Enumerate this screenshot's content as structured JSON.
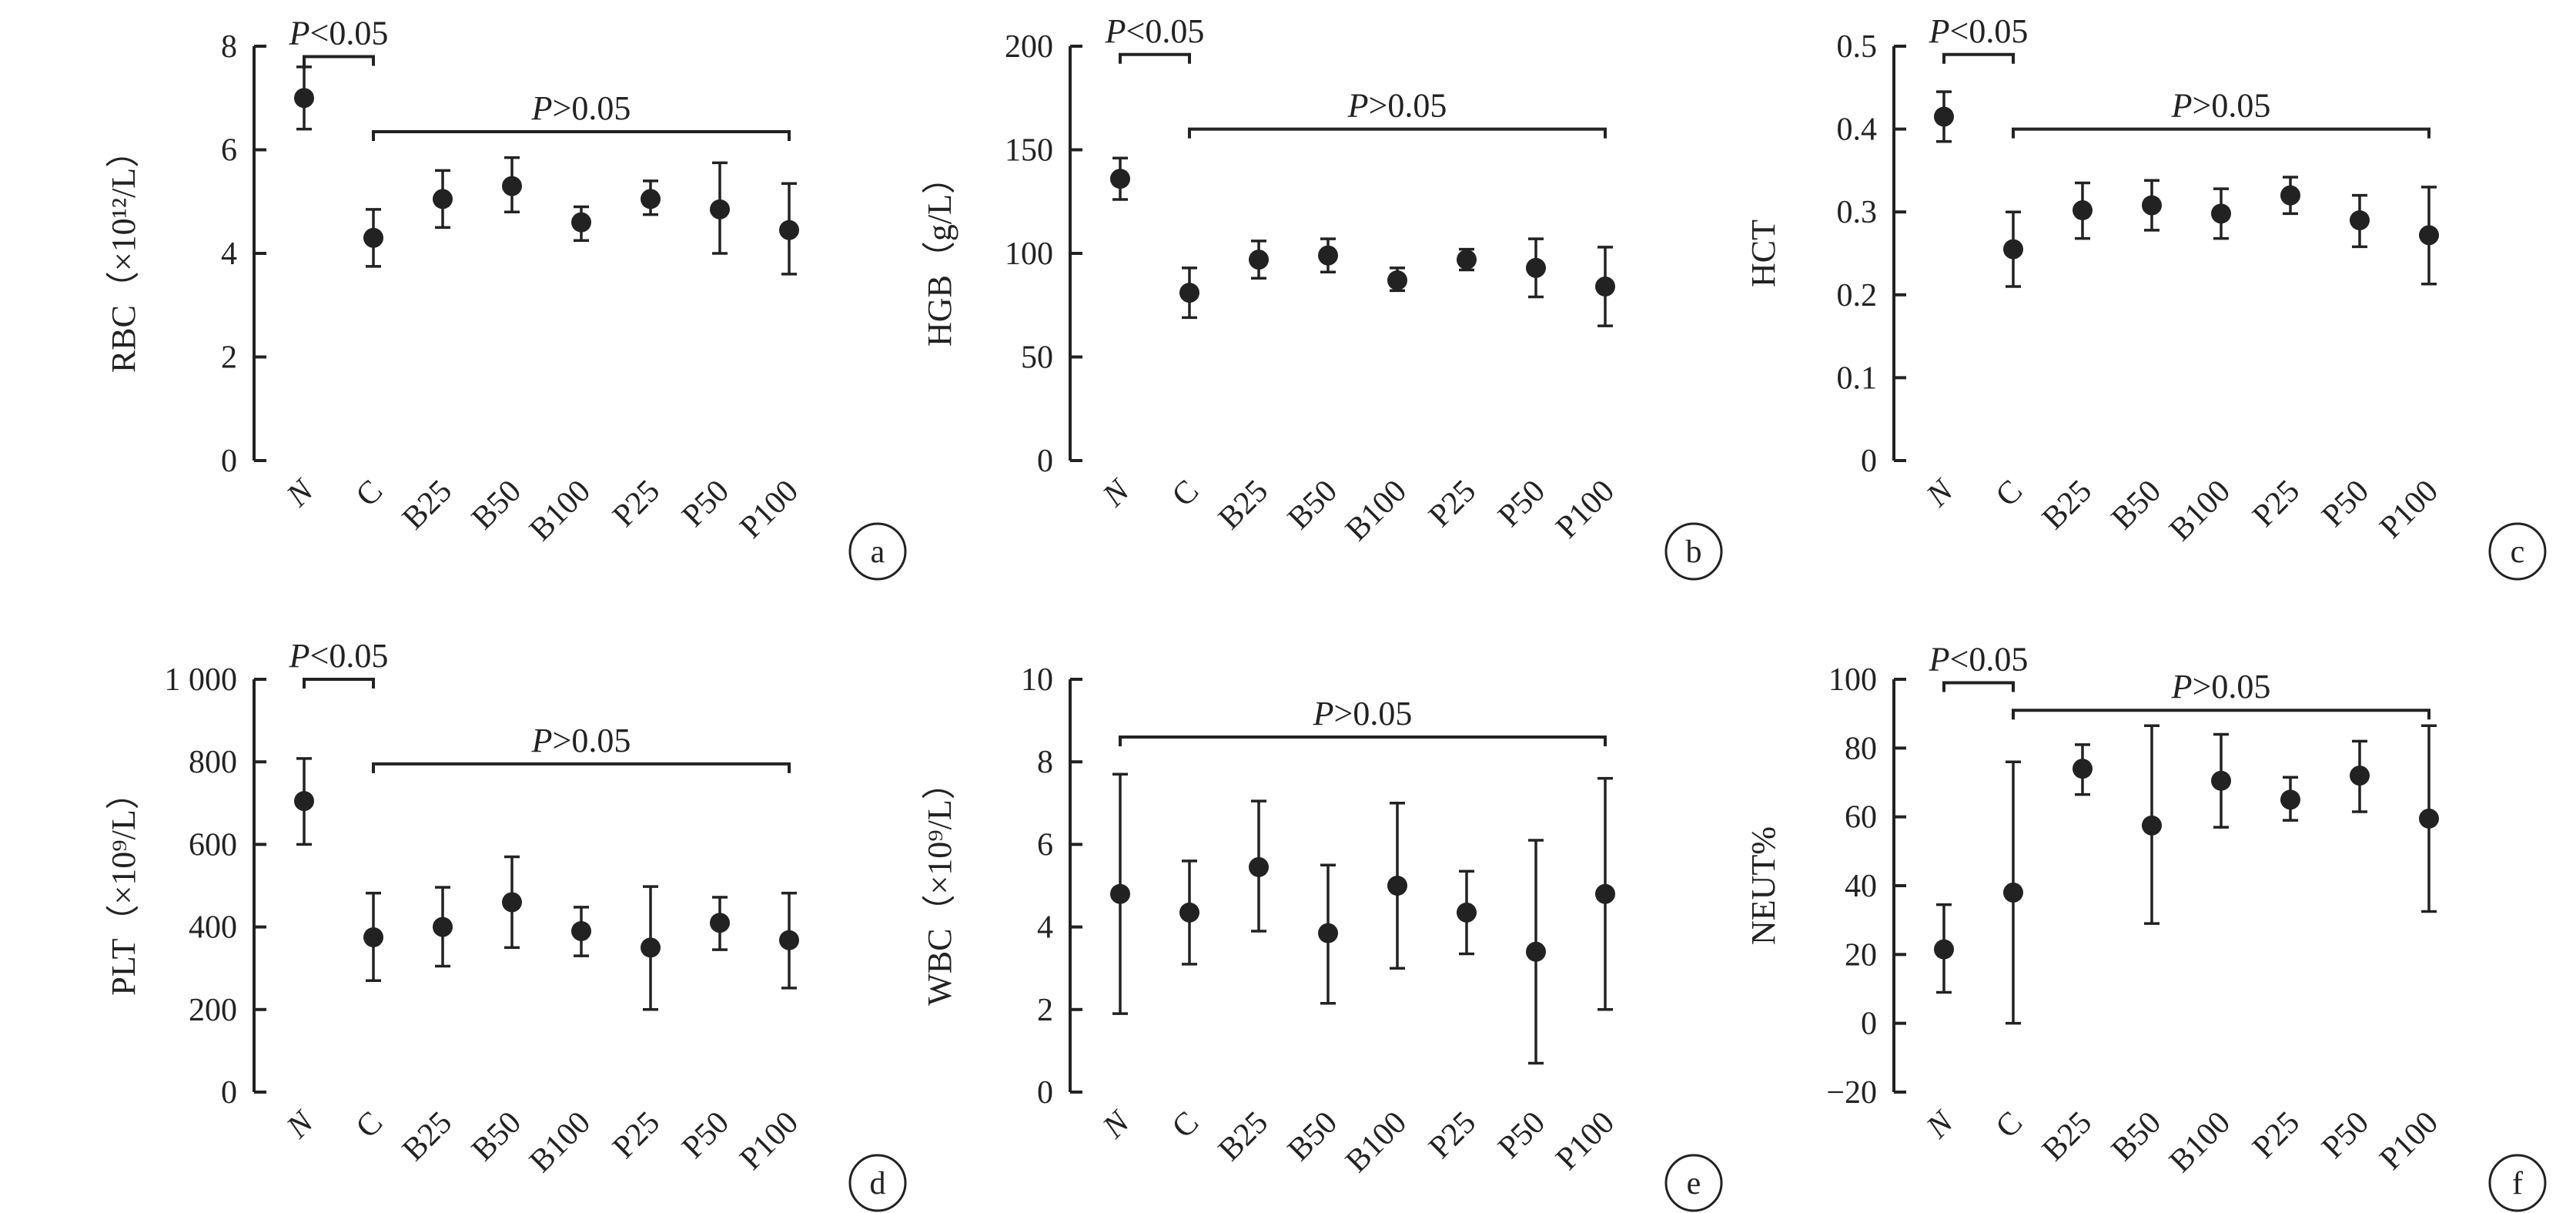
{
  "chart_data": [
    {
      "type": "scatter",
      "panel": "a",
      "categories": [
        "N",
        "C",
        "B25",
        "B50",
        "B100",
        "P25",
        "P50",
        "P100"
      ],
      "ylabel": "RBC（×10¹²/L）",
      "ylim": [
        0,
        8
      ],
      "yticks": [
        "0",
        "2",
        "4",
        "6",
        "8"
      ],
      "values": [
        7.0,
        4.3,
        5.05,
        5.3,
        4.6,
        5.05,
        4.85,
        4.45
      ],
      "err_low": [
        6.4,
        3.75,
        4.5,
        4.8,
        4.25,
        4.75,
        4.0,
        3.6
      ],
      "err_high": [
        7.6,
        4.85,
        5.6,
        5.85,
        4.9,
        5.4,
        5.75,
        5.35
      ],
      "annotations": [
        {
          "text": "P<0.05",
          "from": "N",
          "to": "C",
          "y": 7.8
        },
        {
          "text": "P>0.05",
          "from": "C",
          "to": "P100",
          "y": 6.35
        }
      ]
    },
    {
      "type": "scatter",
      "panel": "b",
      "categories": [
        "N",
        "C",
        "B25",
        "B50",
        "B100",
        "P25",
        "P50",
        "P100"
      ],
      "ylabel": "HGB（g/L）",
      "ylim": [
        0,
        200
      ],
      "yticks": [
        "0",
        "50",
        "100",
        "150",
        "200"
      ],
      "values": [
        136,
        81,
        97,
        99,
        87,
        97,
        93,
        84
      ],
      "err_low": [
        126,
        69,
        88,
        91,
        82,
        92,
        79,
        65
      ],
      "err_high": [
        146,
        93,
        106,
        107,
        93,
        102,
        107,
        103
      ],
      "annotations": [
        {
          "text": "P<0.05",
          "from": "N",
          "to": "C",
          "y": 196
        },
        {
          "text": "P>0.05",
          "from": "C",
          "to": "P100",
          "y": 160
        }
      ]
    },
    {
      "type": "scatter",
      "panel": "c",
      "categories": [
        "N",
        "C",
        "B25",
        "B50",
        "B100",
        "P25",
        "P50",
        "P100"
      ],
      "ylabel": "HCT",
      "ylim": [
        0,
        0.5
      ],
      "yticks": [
        "0",
        "0.1",
        "0.2",
        "0.3",
        "0.4",
        "0.5"
      ],
      "values": [
        0.415,
        0.255,
        0.302,
        0.308,
        0.298,
        0.32,
        0.29,
        0.272
      ],
      "err_low": [
        0.385,
        0.21,
        0.268,
        0.278,
        0.268,
        0.298,
        0.258,
        0.213
      ],
      "err_high": [
        0.445,
        0.3,
        0.335,
        0.338,
        0.328,
        0.342,
        0.32,
        0.33
      ],
      "annotations": [
        {
          "text": "P<0.05",
          "from": "N",
          "to": "C",
          "y": 0.49
        },
        {
          "text": "P>0.05",
          "from": "C",
          "to": "P100",
          "y": 0.4
        }
      ]
    },
    {
      "type": "scatter",
      "panel": "d",
      "categories": [
        "N",
        "C",
        "B25",
        "B50",
        "B100",
        "P25",
        "P50",
        "P100"
      ],
      "ylabel": "PLT（×10⁹/L）",
      "ylim": [
        0,
        1000
      ],
      "yticks": [
        "0",
        "200",
        "400",
        "600",
        "800",
        "1 000"
      ],
      "values": [
        705,
        375,
        400,
        460,
        390,
        350,
        410,
        368
      ],
      "err_low": [
        600,
        270,
        305,
        350,
        330,
        200,
        345,
        252
      ],
      "err_high": [
        808,
        482,
        496,
        570,
        448,
        498,
        472,
        482
      ],
      "annotations": [
        {
          "text": "P<0.05",
          "from": "N",
          "to": "C",
          "y": 1000
        },
        {
          "text": "P>0.05",
          "from": "C",
          "to": "P100",
          "y": 795
        }
      ]
    },
    {
      "type": "scatter",
      "panel": "e",
      "categories": [
        "N",
        "C",
        "B25",
        "B50",
        "B100",
        "P25",
        "P50",
        "P100"
      ],
      "ylabel": "WBC（×10⁹/L）",
      "ylim": [
        0,
        10
      ],
      "yticks": [
        "0",
        "2",
        "4",
        "6",
        "8",
        "10"
      ],
      "values": [
        4.8,
        4.35,
        5.45,
        3.85,
        5.0,
        4.35,
        3.4,
        4.8
      ],
      "err_low": [
        1.9,
        3.1,
        3.9,
        2.15,
        3.0,
        3.35,
        0.7,
        2.0
      ],
      "err_high": [
        7.7,
        5.6,
        7.05,
        5.5,
        7.0,
        5.35,
        6.1,
        7.6
      ],
      "annotations": [
        {
          "text": "P>0.05",
          "from": "N",
          "to": "P100",
          "y": 8.6
        }
      ]
    },
    {
      "type": "scatter",
      "panel": "f",
      "categories": [
        "N",
        "C",
        "B25",
        "B50",
        "B100",
        "P25",
        "P50",
        "P100"
      ],
      "ylabel": "NEUT%",
      "ylim": [
        -20,
        100
      ],
      "yticks": [
        "−20",
        "0",
        "20",
        "40",
        "60",
        "80",
        "100"
      ],
      "values": [
        21.5,
        38,
        74,
        57.5,
        70.5,
        65,
        72,
        59.5
      ],
      "err_low": [
        9,
        0,
        66.5,
        29,
        57,
        59,
        61.5,
        32.5
      ],
      "err_high": [
        34.5,
        76,
        81,
        86.5,
        84,
        71.5,
        82,
        86.5
      ],
      "annotations": [
        {
          "text": "P<0.05",
          "from": "N",
          "to": "C",
          "y": 99
        },
        {
          "text": "P>0.05",
          "from": "C",
          "to": "P100",
          "y": 91
        }
      ]
    }
  ]
}
